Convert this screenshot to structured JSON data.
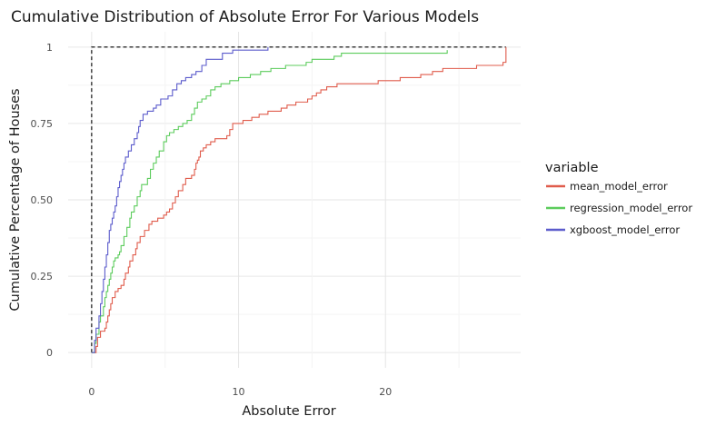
{
  "chart_data": {
    "type": "line",
    "subtype": "step-ecdf",
    "title": "Cumulative Distribution of Absolute Error For Various Models",
    "xlabel": "Absolute Error",
    "ylabel": "Cumulative Percentage of Houses",
    "xlim": [
      -1.6,
      29.2
    ],
    "ylim": [
      -0.05,
      1.05
    ],
    "x_ticks": [
      0,
      10,
      20
    ],
    "x_tick_labels": [
      "0",
      "10",
      "20"
    ],
    "y_ticks": [
      0,
      0.25,
      0.5,
      0.75,
      1
    ],
    "y_tick_labels": [
      "0",
      "0.25",
      "0.50",
      "0.75",
      "1"
    ],
    "grid": true,
    "legend": {
      "title": "variable",
      "position": "right"
    },
    "series": [
      {
        "name": "mean_model_error",
        "color": "#e05c4c",
        "points": [
          [
            0,
            0
          ],
          [
            0.3,
            0.02
          ],
          [
            0.4,
            0.05
          ],
          [
            0.6,
            0.07
          ],
          [
            0.9,
            0.08
          ],
          [
            1.0,
            0.1
          ],
          [
            1.1,
            0.12
          ],
          [
            1.2,
            0.14
          ],
          [
            1.3,
            0.16
          ],
          [
            1.4,
            0.18
          ],
          [
            1.6,
            0.2
          ],
          [
            1.8,
            0.21
          ],
          [
            2.0,
            0.22
          ],
          [
            2.2,
            0.24
          ],
          [
            2.3,
            0.26
          ],
          [
            2.5,
            0.28
          ],
          [
            2.6,
            0.3
          ],
          [
            2.8,
            0.32
          ],
          [
            3.0,
            0.34
          ],
          [
            3.1,
            0.36
          ],
          [
            3.3,
            0.38
          ],
          [
            3.6,
            0.4
          ],
          [
            3.9,
            0.42
          ],
          [
            4.1,
            0.43
          ],
          [
            4.5,
            0.44
          ],
          [
            4.9,
            0.45
          ],
          [
            5.1,
            0.46
          ],
          [
            5.3,
            0.47
          ],
          [
            5.5,
            0.49
          ],
          [
            5.7,
            0.51
          ],
          [
            5.9,
            0.53
          ],
          [
            6.2,
            0.55
          ],
          [
            6.4,
            0.57
          ],
          [
            6.8,
            0.58
          ],
          [
            7.0,
            0.6
          ],
          [
            7.1,
            0.62
          ],
          [
            7.2,
            0.63
          ],
          [
            7.3,
            0.64
          ],
          [
            7.4,
            0.66
          ],
          [
            7.6,
            0.67
          ],
          [
            7.8,
            0.68
          ],
          [
            8.1,
            0.69
          ],
          [
            8.4,
            0.7
          ],
          [
            9.2,
            0.71
          ],
          [
            9.4,
            0.73
          ],
          [
            9.6,
            0.75
          ],
          [
            10.3,
            0.76
          ],
          [
            10.9,
            0.77
          ],
          [
            11.4,
            0.78
          ],
          [
            12.0,
            0.79
          ],
          [
            12.9,
            0.8
          ],
          [
            13.3,
            0.81
          ],
          [
            13.9,
            0.82
          ],
          [
            14.7,
            0.83
          ],
          [
            15.0,
            0.84
          ],
          [
            15.3,
            0.85
          ],
          [
            15.6,
            0.86
          ],
          [
            16.0,
            0.87
          ],
          [
            16.7,
            0.88
          ],
          [
            19.5,
            0.89
          ],
          [
            21.0,
            0.9
          ],
          [
            22.4,
            0.91
          ],
          [
            23.2,
            0.92
          ],
          [
            23.9,
            0.93
          ],
          [
            26.2,
            0.94
          ],
          [
            28.0,
            0.95
          ],
          [
            28.2,
            1.0
          ]
        ]
      },
      {
        "name": "regression_model_error",
        "color": "#5ccc5c",
        "points": [
          [
            0,
            0
          ],
          [
            0.2,
            0.03
          ],
          [
            0.3,
            0.06
          ],
          [
            0.5,
            0.1
          ],
          [
            0.6,
            0.12
          ],
          [
            0.8,
            0.15
          ],
          [
            0.9,
            0.18
          ],
          [
            1.0,
            0.2
          ],
          [
            1.1,
            0.22
          ],
          [
            1.2,
            0.24
          ],
          [
            1.3,
            0.26
          ],
          [
            1.4,
            0.28
          ],
          [
            1.5,
            0.3
          ],
          [
            1.6,
            0.31
          ],
          [
            1.8,
            0.32
          ],
          [
            1.9,
            0.33
          ],
          [
            2.0,
            0.35
          ],
          [
            2.2,
            0.38
          ],
          [
            2.4,
            0.41
          ],
          [
            2.6,
            0.44
          ],
          [
            2.7,
            0.46
          ],
          [
            2.9,
            0.48
          ],
          [
            3.1,
            0.51
          ],
          [
            3.3,
            0.53
          ],
          [
            3.4,
            0.55
          ],
          [
            3.8,
            0.57
          ],
          [
            4.0,
            0.6
          ],
          [
            4.2,
            0.62
          ],
          [
            4.4,
            0.64
          ],
          [
            4.6,
            0.66
          ],
          [
            4.9,
            0.69
          ],
          [
            5.1,
            0.71
          ],
          [
            5.3,
            0.72
          ],
          [
            5.6,
            0.73
          ],
          [
            5.9,
            0.74
          ],
          [
            6.2,
            0.75
          ],
          [
            6.5,
            0.76
          ],
          [
            6.8,
            0.78
          ],
          [
            7.0,
            0.8
          ],
          [
            7.2,
            0.82
          ],
          [
            7.5,
            0.83
          ],
          [
            7.8,
            0.84
          ],
          [
            8.1,
            0.86
          ],
          [
            8.4,
            0.87
          ],
          [
            8.8,
            0.88
          ],
          [
            9.4,
            0.89
          ],
          [
            10.0,
            0.9
          ],
          [
            10.8,
            0.91
          ],
          [
            11.5,
            0.92
          ],
          [
            12.2,
            0.93
          ],
          [
            13.2,
            0.94
          ],
          [
            14.6,
            0.95
          ],
          [
            15.0,
            0.96
          ],
          [
            16.5,
            0.97
          ],
          [
            17.0,
            0.98
          ],
          [
            24.2,
            0.99
          ]
        ]
      },
      {
        "name": "xgboost_model_error",
        "color": "#5c5ccc",
        "points": [
          [
            0,
            0
          ],
          [
            0.2,
            0.04
          ],
          [
            0.3,
            0.08
          ],
          [
            0.5,
            0.12
          ],
          [
            0.6,
            0.16
          ],
          [
            0.7,
            0.2
          ],
          [
            0.8,
            0.24
          ],
          [
            0.9,
            0.28
          ],
          [
            1.0,
            0.32
          ],
          [
            1.1,
            0.36
          ],
          [
            1.2,
            0.4
          ],
          [
            1.3,
            0.42
          ],
          [
            1.4,
            0.44
          ],
          [
            1.5,
            0.46
          ],
          [
            1.6,
            0.48
          ],
          [
            1.7,
            0.51
          ],
          [
            1.8,
            0.54
          ],
          [
            1.9,
            0.56
          ],
          [
            2.0,
            0.58
          ],
          [
            2.1,
            0.6
          ],
          [
            2.2,
            0.62
          ],
          [
            2.3,
            0.64
          ],
          [
            2.5,
            0.66
          ],
          [
            2.7,
            0.68
          ],
          [
            2.9,
            0.7
          ],
          [
            3.1,
            0.72
          ],
          [
            3.2,
            0.74
          ],
          [
            3.3,
            0.76
          ],
          [
            3.5,
            0.78
          ],
          [
            3.8,
            0.79
          ],
          [
            4.2,
            0.8
          ],
          [
            4.4,
            0.81
          ],
          [
            4.7,
            0.83
          ],
          [
            5.2,
            0.84
          ],
          [
            5.5,
            0.86
          ],
          [
            5.8,
            0.88
          ],
          [
            6.1,
            0.89
          ],
          [
            6.4,
            0.9
          ],
          [
            6.8,
            0.91
          ],
          [
            7.1,
            0.92
          ],
          [
            7.5,
            0.94
          ],
          [
            7.8,
            0.96
          ],
          [
            8.9,
            0.98
          ],
          [
            9.6,
            0.99
          ],
          [
            12.0,
            1.0
          ]
        ]
      }
    ],
    "reference_line": {
      "style": "dashed",
      "color": "#000000",
      "points": [
        [
          0,
          0
        ],
        [
          0,
          1
        ],
        [
          28.2,
          1
        ]
      ]
    }
  }
}
